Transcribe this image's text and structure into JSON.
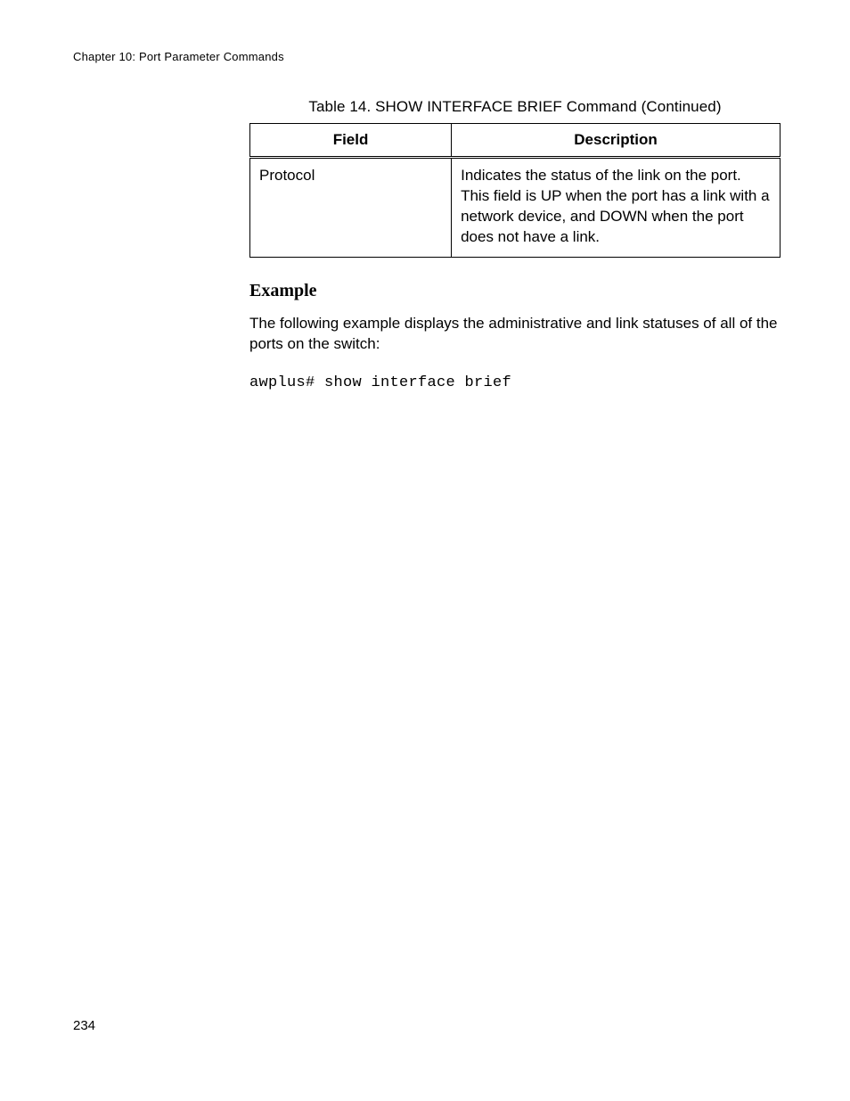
{
  "header": {
    "chapter_line": "Chapter 10: Port Parameter Commands"
  },
  "table": {
    "caption": "Table 14. SHOW INTERFACE BRIEF Command (Continued)",
    "columns": [
      "Field",
      "Description"
    ],
    "rows": [
      {
        "field": "Protocol",
        "description": "Indicates the status of the link on the port. This field is UP when the port has a link with a network device, and DOWN when the port does not have a link."
      }
    ]
  },
  "example": {
    "heading": "Example",
    "intro": "The following example displays the administrative and link statuses of all of the ports on the switch:",
    "command": "awplus# show interface brief"
  },
  "footer": {
    "page_number": "234"
  }
}
